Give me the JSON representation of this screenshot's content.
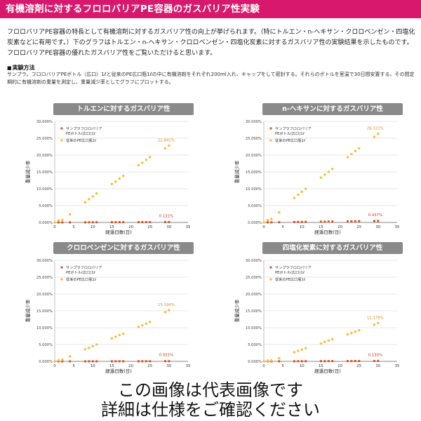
{
  "header": {
    "title": "有機溶剤に対するフロロバリアPE容器のガスバリア性実験"
  },
  "intro": {
    "text": "フロロバリアPE容器の特長として有機溶剤に対するガスバリア性の向上が挙げられます。（特にトルエン・n-ヘキサン・クロロベンゼン・四塩化炭素などに有用です。）下のグラフはトルエン・n-ヘキサン・クロロベンゼン・四塩化炭素に対するガスバリア性の実験結果を示したものです。フロロバリアPE容器の優れたガスバリア性をご覧いただけると思います。"
  },
  "method": {
    "title": "実験方法",
    "text": "サンプラ。フロロバリアPEボトル（広口）1ℓと従来のPE広口瓶1ℓの中に有機溶剤をそれぞれ200ml入れ、キャップをして密封する。それらのボトルを室温で30日間安置する。その間定期的に有機溶剤の重量を測定し、重量減少率としてグラフにプロットする。"
  },
  "colors": {
    "header_bg": "#d8186c",
    "fluoro_series": "#d9531e",
    "conventional_series": "#f3c24a",
    "fluoro_label": "#c0392b",
    "conventional_label": "#e08a2c",
    "chart_title_bg": "#8a8a8a"
  },
  "chart_data": [
    {
      "type": "scatter",
      "title": "トルエンに対するガスバリア性",
      "xlabel": "経過日数(日)",
      "ylabel": "重量減少率",
      "xlim": [
        0,
        35
      ],
      "ylim": [
        0,
        30
      ],
      "xticks": [
        "0",
        "5",
        "10",
        "15",
        "20",
        "25",
        "30",
        "35"
      ],
      "yticks": [
        "0.000%",
        "5.000%",
        "10.000%",
        "15.000%",
        "20.000%",
        "25.000%",
        "30.000%"
      ],
      "legend": "top-left",
      "annotations": {
        "conventional_end": "22.841%",
        "fluoro_end": "0.131%"
      },
      "series": [
        {
          "name": "サンプラフロロバリアPEボトル(広口)1ℓ",
          "key": "fluoro",
          "x": [
            0,
            1,
            2,
            4,
            8,
            9,
            10,
            11,
            15,
            16,
            17,
            18,
            22,
            23,
            24,
            25,
            29,
            30
          ],
          "y": [
            0,
            0.01,
            0.01,
            0.02,
            0.03,
            0.04,
            0.04,
            0.05,
            0.06,
            0.06,
            0.07,
            0.07,
            0.09,
            0.09,
            0.1,
            0.1,
            0.12,
            0.131
          ]
        },
        {
          "name": "従来のPE広口瓶1ℓ",
          "key": "conventional",
          "x": [
            0,
            1,
            2,
            4,
            8,
            9,
            10,
            11,
            15,
            16,
            17,
            18,
            22,
            23,
            24,
            25,
            29,
            30
          ],
          "y": [
            0,
            0.6,
            0.8,
            2.4,
            6.0,
            6.9,
            7.7,
            8.6,
            11.4,
            12.1,
            13.0,
            13.8,
            17.0,
            17.7,
            18.6,
            19.4,
            22.0,
            22.841
          ]
        }
      ]
    },
    {
      "type": "scatter",
      "title": "n-ヘキサンに対するガスバリア性",
      "xlabel": "経過日数(日)",
      "ylabel": "重量減少率",
      "xlim": [
        0,
        35
      ],
      "ylim": [
        0,
        30
      ],
      "xticks": [
        "0",
        "5",
        "10",
        "15",
        "20",
        "25",
        "30",
        "35"
      ],
      "yticks": [
        "0.000%",
        "5.000%",
        "10.000%",
        "15.000%",
        "20.000%",
        "25.000%",
        "30.000%"
      ],
      "legend": "top-left",
      "annotations": {
        "conventional_end": "26.322%",
        "fluoro_end": "0.437%"
      },
      "series": [
        {
          "name": "サンプラフロロバリアPEボトル(広口)1ℓ",
          "key": "fluoro",
          "x": [
            0,
            1,
            2,
            4,
            8,
            9,
            10,
            11,
            15,
            16,
            17,
            18,
            22,
            23,
            24,
            25,
            29,
            30
          ],
          "y": [
            0,
            0.02,
            0.03,
            0.06,
            0.12,
            0.13,
            0.15,
            0.16,
            0.22,
            0.23,
            0.25,
            0.26,
            0.32,
            0.34,
            0.35,
            0.37,
            0.42,
            0.437
          ]
        },
        {
          "name": "従来のPE広口瓶1ℓ",
          "key": "conventional",
          "x": [
            0,
            1,
            2,
            4,
            8,
            9,
            10,
            11,
            15,
            16,
            17,
            18,
            22,
            23,
            24,
            25,
            29,
            30
          ],
          "y": [
            0,
            0.7,
            1.0,
            3.0,
            7.3,
            8.2,
            9.1,
            10.0,
            13.3,
            14.2,
            15.0,
            15.9,
            19.4,
            20.3,
            21.2,
            22.0,
            25.4,
            26.322
          ]
        }
      ]
    },
    {
      "type": "scatter",
      "title": "クロロベンゼンに対するガスバリア性",
      "xlabel": "経過日数(日)",
      "ylabel": "重量減少率",
      "xlim": [
        0,
        35
      ],
      "ylim": [
        0,
        30
      ],
      "xticks": [
        "0",
        "5",
        "10",
        "15",
        "20",
        "25",
        "30",
        "35"
      ],
      "yticks": [
        "0.000%",
        "5.000%",
        "10.000%",
        "15.000%",
        "20.000%",
        "25.000%",
        "30.000%"
      ],
      "legend": "top-left",
      "annotations": {
        "conventional_end": "15.194%",
        "fluoro_end": "0.055%"
      },
      "series": [
        {
          "name": "サンプラフロロバリアPEボトル(広口)1ℓ",
          "key": "fluoro",
          "x": [
            0,
            1,
            2,
            4,
            8,
            9,
            10,
            11,
            15,
            16,
            17,
            18,
            22,
            23,
            24,
            25,
            29,
            30
          ],
          "y": [
            0,
            0.003,
            0.005,
            0.008,
            0.015,
            0.017,
            0.019,
            0.021,
            0.028,
            0.029,
            0.031,
            0.033,
            0.041,
            0.042,
            0.044,
            0.046,
            0.053,
            0.055
          ]
        },
        {
          "name": "従来のPE広口瓶1ℓ",
          "key": "conventional",
          "x": [
            0,
            1,
            2,
            4,
            8,
            9,
            10,
            11,
            15,
            16,
            17,
            18,
            22,
            23,
            24,
            25,
            29,
            30
          ],
          "y": [
            0,
            0.3,
            0.5,
            1.5,
            3.6,
            4.0,
            4.5,
            5.0,
            6.8,
            7.3,
            7.8,
            8.2,
            10.2,
            10.7,
            11.2,
            11.7,
            14.6,
            15.194
          ]
        }
      ]
    },
    {
      "type": "scatter",
      "title": "四塩化炭素に対するガスバリア性",
      "xlabel": "経過日数(日)",
      "ylabel": "重量減少率",
      "xlim": [
        0,
        35
      ],
      "ylim": [
        0,
        30
      ],
      "xticks": [
        "0",
        "5",
        "10",
        "15",
        "20",
        "25",
        "30",
        "35"
      ],
      "yticks": [
        "0.000%",
        "5.000%",
        "10.000%",
        "15.000%",
        "20.000%",
        "25.000%",
        "30.000%"
      ],
      "legend": "top-left",
      "annotations": {
        "conventional_end": "11.378%",
        "fluoro_end": "0.130%"
      },
      "series": [
        {
          "name": "サンプラフロロバリアPEボトル(広口)1ℓ",
          "key": "fluoro",
          "x": [
            0,
            1,
            2,
            4,
            8,
            9,
            10,
            11,
            15,
            16,
            17,
            18,
            22,
            23,
            24,
            25,
            29,
            30
          ],
          "y": [
            0,
            0.01,
            0.01,
            0.02,
            0.03,
            0.04,
            0.04,
            0.05,
            0.06,
            0.06,
            0.07,
            0.07,
            0.09,
            0.09,
            0.1,
            0.1,
            0.12,
            0.13
          ]
        },
        {
          "name": "従来のPE広口瓶1ℓ",
          "key": "conventional",
          "x": [
            0,
            1,
            2,
            4,
            8,
            9,
            10,
            11,
            15,
            16,
            17,
            18,
            22,
            23,
            24,
            25,
            29,
            30
          ],
          "y": [
            0,
            0.2,
            0.3,
            0.9,
            2.7,
            3.1,
            3.5,
            3.9,
            5.3,
            5.8,
            6.2,
            6.6,
            8.0,
            8.4,
            8.8,
            9.2,
            10.9,
            11.378
          ]
        }
      ]
    }
  ],
  "footer": {
    "line1": "この画像は代表画像です",
    "line2": "詳細は仕様をご確認ください"
  }
}
